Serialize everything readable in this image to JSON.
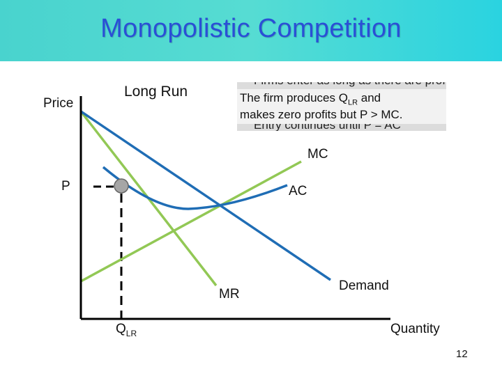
{
  "title": "Monopolistic Competition",
  "subtitle": "Long Run",
  "axis": {
    "y_label": "Price",
    "x_label": "Quantity"
  },
  "text_box": {
    "line1_pre": "The firm produces Q",
    "line1_sub": "LR",
    "line1_post": " and",
    "line2": "makes zero profits but P > MC.",
    "hidden_line1": "Firms enter as long as there are profits.",
    "hidden_line2": "Entry continues until P = AC"
  },
  "curves": {
    "mc": "MC",
    "ac": "AC",
    "mr": "MR",
    "demand": "Demand"
  },
  "markers": {
    "price": "P",
    "quantity_main": "Q",
    "quantity_sub": "LR"
  },
  "page_number": "12",
  "colors": {
    "header_bg": "#4fd8d2",
    "title": "#2a4fd6",
    "demand_ac": "#1f6db5",
    "mc_mr": "#92c855",
    "marker": "#a6a6a6"
  }
}
